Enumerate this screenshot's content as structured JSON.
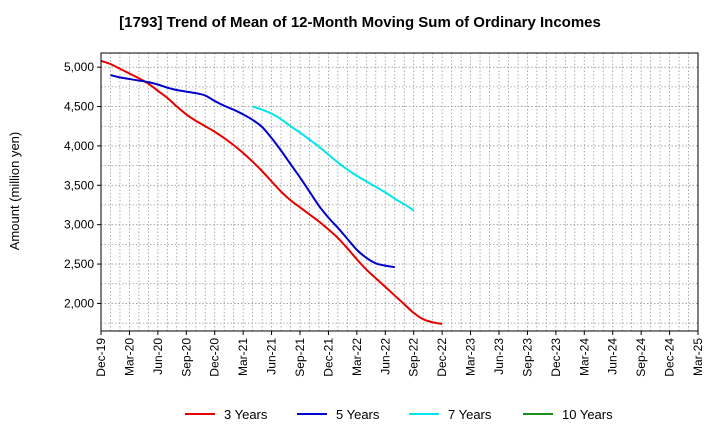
{
  "chart_data": {
    "type": "line",
    "title": "[1793]  Trend of Mean of 12-Month Moving Sum of Ordinary Incomes",
    "xlabel": "",
    "ylabel": "Amount (million yen)",
    "x_ticks": [
      "Dec-19",
      "Mar-20",
      "Jun-20",
      "Sep-20",
      "Dec-20",
      "Mar-21",
      "Jun-21",
      "Sep-21",
      "Dec-21",
      "Mar-22",
      "Jun-22",
      "Sep-22",
      "Dec-22",
      "Mar-23",
      "Jun-23",
      "Sep-23",
      "Dec-23",
      "Mar-24",
      "Jun-24",
      "Sep-24",
      "Dec-24",
      "Mar-25"
    ],
    "y_ticks": [
      2000,
      2500,
      3000,
      3500,
      4000,
      4500,
      5000
    ],
    "y_tick_labels": [
      "2,000",
      "2,500",
      "3,000",
      "3,500",
      "4,000",
      "4,500",
      "5,000"
    ],
    "ylim": [
      1650,
      5180
    ],
    "grid": true,
    "legend_position": "bottom",
    "series": [
      {
        "name": "3 Years",
        "color": "#e60000",
        "start_index": 0,
        "values": [
          5080,
          5040,
          4980,
          4920,
          4860,
          4790,
          4700,
          4610,
          4500,
          4400,
          4320,
          4250,
          4180,
          4100,
          4010,
          3910,
          3800,
          3680,
          3550,
          3420,
          3310,
          3220,
          3130,
          3040,
          2940,
          2830,
          2700,
          2560,
          2430,
          2320,
          2210,
          2100,
          1990,
          1880,
          1800,
          1760,
          1740
        ]
      },
      {
        "name": "5 Years",
        "color": "#0000cc",
        "start_index": 1,
        "values": [
          4900,
          4870,
          4850,
          4830,
          4810,
          4780,
          4740,
          4710,
          4690,
          4670,
          4640,
          4570,
          4510,
          4460,
          4400,
          4330,
          4240,
          4100,
          3940,
          3770,
          3600,
          3420,
          3240,
          3090,
          2960,
          2820,
          2680,
          2580,
          2510,
          2480,
          2460
        ]
      },
      {
        "name": "7 Years",
        "color": "#00e5ee",
        "start_index": 16,
        "values": [
          4500,
          4460,
          4410,
          4340,
          4250,
          4170,
          4080,
          3990,
          3890,
          3790,
          3700,
          3620,
          3550,
          3480,
          3410,
          3330,
          3260,
          3180
        ]
      },
      {
        "name": "10 Years",
        "color": "#1a8c1a",
        "start_index": 0,
        "values": []
      }
    ]
  }
}
